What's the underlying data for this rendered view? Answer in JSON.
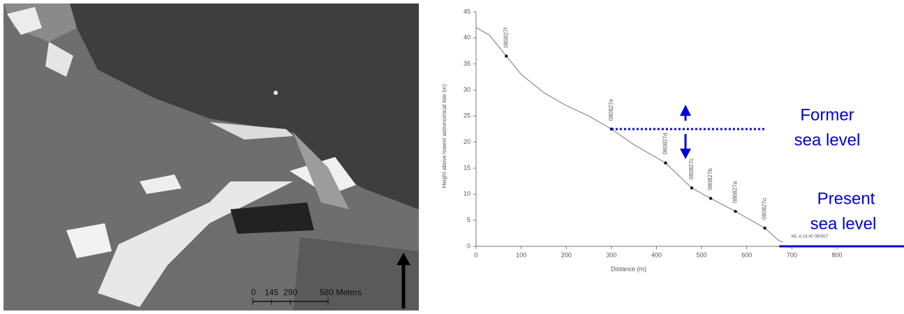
{
  "photo": {
    "scale_labels": [
      "0",
      "145",
      "290",
      "580 Meters"
    ]
  },
  "chart_data": {
    "type": "line",
    "x_label": "Distance (m)",
    "y_label": "Height above lowest astronomical tide (m)",
    "x": [
      0,
      30,
      67,
      100,
      150,
      200,
      250,
      300,
      350,
      420,
      478,
      520,
      575,
      640,
      670,
      680
    ],
    "series": [
      {
        "color": "#8a8a8a",
        "values": [
          42,
          40.5,
          36.5,
          33,
          29.5,
          27,
          25,
          22.5,
          19.5,
          16,
          11.2,
          9.2,
          6.7,
          3.5,
          1.2,
          0.8
        ]
      }
    ],
    "xlim": [
      0,
      800
    ],
    "xticks": [
      0,
      100,
      200,
      300,
      400,
      500,
      600,
      700,
      800
    ],
    "ylim": [
      0,
      45
    ],
    "yticks": [
      0,
      5,
      10,
      15,
      20,
      25,
      30,
      35,
      40,
      45
    ],
    "samples": {
      "x": [
        67,
        300,
        420,
        478,
        520,
        575,
        640
      ],
      "y": [
        36.5,
        22.5,
        16,
        11.2,
        9.2,
        6.7,
        3.5
      ],
      "labels": [
        "080827f",
        "080827e",
        "080827d",
        "080827c",
        "080827b",
        "080827a",
        "080827o"
      ],
      "color": "#111"
    },
    "tide_label": "WL xl 18.40 080827",
    "annotations": [
      {
        "text": [
          "Former",
          "sea level"
        ],
        "y": 22.5,
        "x": [
          300,
          642
        ],
        "style": "dotted",
        "color": "#0000dd"
      },
      {
        "text": [
          "Present",
          "sea level"
        ],
        "y": 0,
        "x": [
          672,
          949
        ],
        "style": "solid",
        "color": "#0000dd"
      }
    ]
  }
}
